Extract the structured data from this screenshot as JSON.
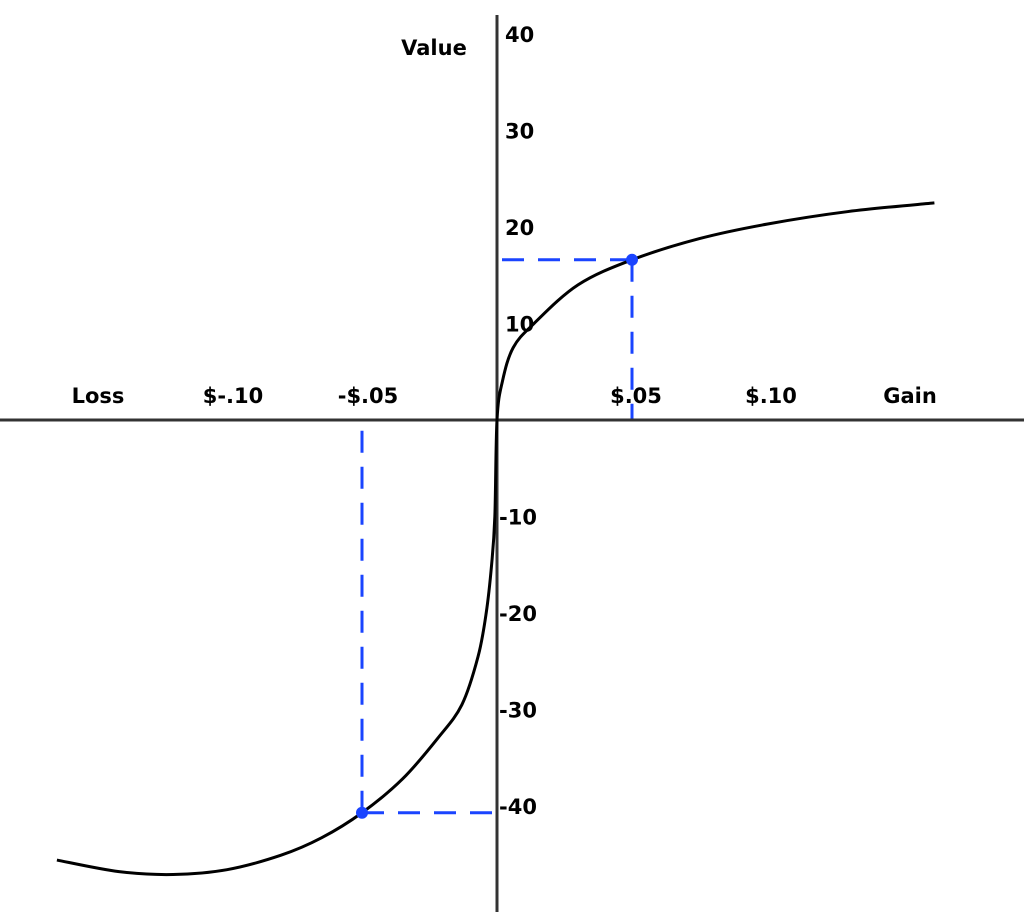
{
  "chart_data": {
    "type": "line",
    "ylabel": "Value",
    "xlabel_left": "Loss",
    "xlabel_right": "Gain",
    "x_ticks": [
      {
        "value": -0.1,
        "label": "$-.10"
      },
      {
        "value": -0.05,
        "label": "-$.05"
      },
      {
        "value": 0.05,
        "label": "$.05"
      },
      {
        "value": 0.1,
        "label": "$.10"
      }
    ],
    "y_ticks": [
      {
        "value": 40,
        "label": "40"
      },
      {
        "value": 30,
        "label": "30"
      },
      {
        "value": 20,
        "label": "20"
      },
      {
        "value": 10,
        "label": "10"
      },
      {
        "value": -10,
        "label": "-10"
      },
      {
        "value": -20,
        "label": "-20"
      },
      {
        "value": -30,
        "label": "-30"
      },
      {
        "value": -40,
        "label": "-40"
      }
    ],
    "xlim": [
      -0.18,
      0.19
    ],
    "ylim": [
      -51,
      42
    ],
    "grid": false,
    "series": [
      {
        "color": "#000000",
        "points": [
          [
            -0.163,
            -45.6
          ],
          [
            -0.14,
            -46.8
          ],
          [
            -0.12,
            -47.1
          ],
          [
            -0.1,
            -46.6
          ],
          [
            -0.08,
            -45.1
          ],
          [
            -0.065,
            -43.3
          ],
          [
            -0.05,
            -40.7
          ],
          [
            -0.035,
            -37.2
          ],
          [
            -0.022,
            -33
          ],
          [
            -0.013,
            -29.5
          ],
          [
            -0.007,
            -24.5
          ],
          [
            -0.004,
            -20
          ],
          [
            -0.002,
            -15
          ],
          [
            -0.0008,
            -10
          ],
          [
            0,
            0
          ],
          [
            0.002,
            4
          ],
          [
            0.006,
            7.5
          ],
          [
            0.0137,
            10
          ],
          [
            0.03,
            14
          ],
          [
            0.05,
            16.6
          ],
          [
            0.075,
            18.8
          ],
          [
            0.1,
            20.3
          ],
          [
            0.13,
            21.6
          ],
          [
            0.162,
            22.5
          ]
        ]
      }
    ],
    "highlights": [
      {
        "x": 0.05,
        "y": 16.6,
        "color": "#1a44ff"
      },
      {
        "x": -0.05,
        "y": -40.7,
        "color": "#1a44ff"
      }
    ],
    "axis_color": "#333333"
  }
}
